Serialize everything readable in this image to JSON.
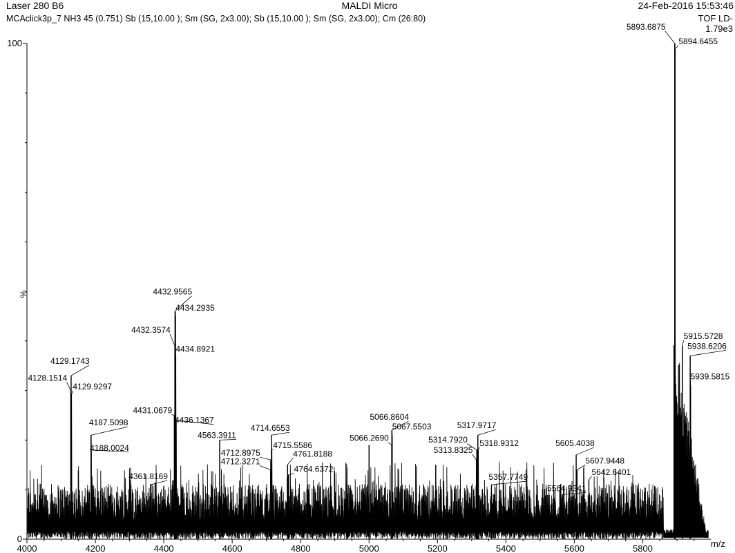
{
  "header": {
    "left": "Laser 280 B6",
    "center": "MALDI Micro",
    "right": "24-Feb-2016 15:53:46",
    "subtitle": "MCAclick3p_7 NH3  45 (0.751) Sb (15,10.00 ); Sm (SG, 2x3.00); Sb (15,10.00 ); Sm (SG, 2x3.00); Cm (26:80)",
    "mode": "TOF LD-",
    "max_intensity": "1.79e3"
  },
  "chart_data": {
    "type": "line",
    "title": "MALDI Micro",
    "xlabel": "m/z",
    "ylabel": "%",
    "xlim": [
      4000,
      5999
    ],
    "ylim": [
      0,
      100
    ],
    "x_ticks": [
      4000,
      4200,
      4400,
      4600,
      4800,
      5000,
      5200,
      5400,
      5600,
      5800
    ],
    "y_tick_labels": [
      {
        "value": 100,
        "label": "100"
      },
      {
        "value": 0,
        "label": "0"
      }
    ],
    "grid": false,
    "noise_band": [
      4,
      13
    ],
    "series": [
      {
        "peaks": [
          {
            "x": 4128.15,
            "y": 30
          },
          {
            "x": 4129.17,
            "y": 33
          },
          {
            "x": 4129.93,
            "y": 29
          },
          {
            "x": 4187.51,
            "y": 21
          },
          {
            "x": 4188.0,
            "y": 18
          },
          {
            "x": 4361.82,
            "y": 11
          },
          {
            "x": 4431.07,
            "y": 25
          },
          {
            "x": 4432.36,
            "y": 39
          },
          {
            "x": 4432.96,
            "y": 46
          },
          {
            "x": 4434.29,
            "y": 45
          },
          {
            "x": 4434.89,
            "y": 37
          },
          {
            "x": 4436.14,
            "y": 24
          },
          {
            "x": 4563.39,
            "y": 20
          },
          {
            "x": 4712.33,
            "y": 14
          },
          {
            "x": 4712.9,
            "y": 16
          },
          {
            "x": 4714.66,
            "y": 21
          },
          {
            "x": 4715.56,
            "y": 18
          },
          {
            "x": 4761.82,
            "y": 15
          },
          {
            "x": 4764.64,
            "y": 13
          },
          {
            "x": 5000.0,
            "y": 19
          },
          {
            "x": 5066.27,
            "y": 19
          },
          {
            "x": 5066.86,
            "y": 22
          },
          {
            "x": 5067.55,
            "y": 21
          },
          {
            "x": 5195.0,
            "y": 15
          },
          {
            "x": 5313.83,
            "y": 16
          },
          {
            "x": 5314.79,
            "y": 18
          },
          {
            "x": 5317.97,
            "y": 21
          },
          {
            "x": 5318.93,
            "y": 18
          },
          {
            "x": 5357.77,
            "y": 11
          },
          {
            "x": 5564.93,
            "y": 9
          },
          {
            "x": 5605.4,
            "y": 17
          },
          {
            "x": 5607.94,
            "y": 14
          },
          {
            "x": 5642.64,
            "y": 12
          },
          {
            "x": 5893.69,
            "y": 100
          },
          {
            "x": 5894.65,
            "y": 99
          },
          {
            "x": 5915.57,
            "y": 39
          },
          {
            "x": 5938.62,
            "y": 37
          },
          {
            "x": 5939.58,
            "y": 31
          }
        ]
      }
    ],
    "annotations": [
      {
        "text": "4128.1514",
        "x": 4128.15,
        "y": 30,
        "dx": -62,
        "dy": -14,
        "anchor": "start"
      },
      {
        "text": "4129.1743",
        "x": 4129.17,
        "y": 33,
        "dx": -30,
        "dy": -17,
        "anchor": "start"
      },
      {
        "text": "4129.9297",
        "x": 4129.93,
        "y": 29,
        "dx": 2,
        "dy": -9,
        "anchor": "start"
      },
      {
        "text": "4187.5098",
        "x": 4187.51,
        "y": 21,
        "dx": -3,
        "dy": -14,
        "anchor": "start"
      },
      {
        "text": "4188.0024",
        "x": 4188.0,
        "y": 18,
        "dx": -2,
        "dy": 1,
        "anchor": "start"
      },
      {
        "text": "4361.8169",
        "x": 4361.82,
        "y": 11,
        "dx": -32,
        "dy": -8,
        "anchor": "start"
      },
      {
        "text": "4432.9565",
        "x": 4432.96,
        "y": 46,
        "dx": -32,
        "dy": -24,
        "anchor": "start"
      },
      {
        "text": "4434.2935",
        "x": 4434.29,
        "y": 45,
        "dx": 0,
        "dy": -8,
        "anchor": "start"
      },
      {
        "text": "4432.3574",
        "x": 4432.36,
        "y": 39,
        "dx": -63,
        "dy": -19,
        "anchor": "start"
      },
      {
        "text": "4434.8921",
        "x": 4434.89,
        "y": 37,
        "dx": 0,
        "dy": -6,
        "anchor": "start"
      },
      {
        "text": "4431.0679",
        "x": 4431.07,
        "y": 25,
        "dx": -60,
        "dy": -3,
        "anchor": "start"
      },
      {
        "text": "4436.1367",
        "x": 4436.14,
        "y": 24,
        "dx": -2,
        "dy": 4,
        "anchor": "start"
      },
      {
        "text": "4563.3911",
        "x": 4563.39,
        "y": 20,
        "dx": -32,
        "dy": -3,
        "anchor": "start"
      },
      {
        "text": "4714.6553",
        "x": 4714.66,
        "y": 21,
        "dx": -30,
        "dy": -6,
        "anchor": "start"
      },
      {
        "text": "4715.5586",
        "x": 4715.56,
        "y": 18,
        "dx": 2,
        "dy": -3,
        "anchor": "start"
      },
      {
        "text": "4712.8975",
        "x": 4712.9,
        "y": 16,
        "dx": -72,
        "dy": -6,
        "anchor": "start"
      },
      {
        "text": "4712.3271",
        "x": 4712.33,
        "y": 14,
        "dx": -72,
        "dy": -8,
        "anchor": "start"
      },
      {
        "text": "4761.8188",
        "x": 4761.82,
        "y": 15,
        "dx": 8,
        "dy": -12,
        "anchor": "start"
      },
      {
        "text": "4764.6372",
        "x": 4764.64,
        "y": 13,
        "dx": 8,
        "dy": -4,
        "anchor": "start"
      },
      {
        "text": "5066.8604",
        "x": 5066.86,
        "y": 22,
        "dx": -32,
        "dy": -15,
        "anchor": "start"
      },
      {
        "text": "5066.2690",
        "x": 5066.27,
        "y": 19,
        "dx": -61,
        "dy": -6,
        "anchor": "start"
      },
      {
        "text": "5067.5503",
        "x": 5067.55,
        "y": 21,
        "dx": 0,
        "dy": -8,
        "anchor": "start"
      },
      {
        "text": "5317.9717",
        "x": 5317.97,
        "y": 21,
        "dx": -30,
        "dy": -10,
        "anchor": "start"
      },
      {
        "text": "5314.7920",
        "x": 5314.79,
        "y": 18,
        "dx": -70,
        "dy": -11,
        "anchor": "start"
      },
      {
        "text": "5318.9312",
        "x": 5318.93,
        "y": 18,
        "dx": 2,
        "dy": -6,
        "anchor": "start"
      },
      {
        "text": "5313.8325",
        "x": 5313.83,
        "y": 16,
        "dx": -62,
        "dy": -10,
        "anchor": "start"
      },
      {
        "text": "5357.7749",
        "x": 5357.77,
        "y": 11,
        "dx": -4,
        "dy": -7,
        "anchor": "start"
      },
      {
        "text": "5564.9341",
        "x": 5564.93,
        "y": 9,
        "dx": -22,
        "dy": -5,
        "anchor": "start"
      },
      {
        "text": "5605.4038",
        "x": 5605.4,
        "y": 17,
        "dx": -30,
        "dy": -13,
        "anchor": "start"
      },
      {
        "text": "5607.9448",
        "x": 5607.94,
        "y": 14,
        "dx": 12,
        "dy": -9,
        "anchor": "start"
      },
      {
        "text": "5642.6401",
        "x": 5642.64,
        "y": 12,
        "dx": 4,
        "dy": -7,
        "anchor": "start"
      },
      {
        "text": "5893.6875",
        "x": 5893.69,
        "y": 100,
        "dx": -70,
        "dy": -20,
        "anchor": "start"
      },
      {
        "text": "5894.6455",
        "x": 5894.65,
        "y": 99,
        "dx": 5,
        "dy": -6,
        "anchor": "start"
      },
      {
        "text": "5915.5728",
        "x": 5915.57,
        "y": 39,
        "dx": 2,
        "dy": -10,
        "anchor": "start"
      },
      {
        "text": "5938.6206",
        "x": 5938.62,
        "y": 37,
        "dx": -4,
        "dy": -10,
        "anchor": "start"
      },
      {
        "text": "5939.5815",
        "x": 5939.58,
        "y": 31,
        "dx": 0,
        "dy": -9,
        "anchor": "start"
      }
    ]
  }
}
